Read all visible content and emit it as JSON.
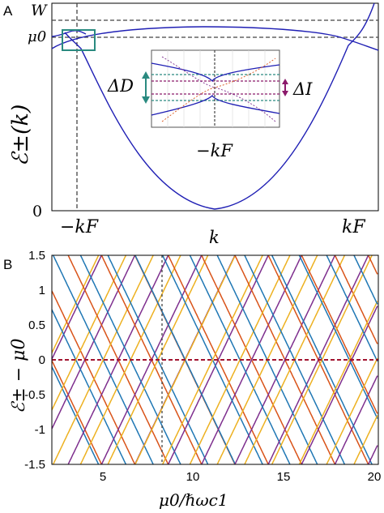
{
  "panelA": {
    "label": "A",
    "ylabel": "ℰ±(k)",
    "xlabel": "k",
    "ytick_W": "W",
    "ytick_mu0": "μ0",
    "ytick_zero": "0",
    "xtick_left": "−kF",
    "xtick_right": "kF",
    "inset": {
      "xlabel": "−kF",
      "delta_d": "ΔD",
      "delta_i": "ΔI"
    },
    "colors": {
      "band": "#1f1fb4",
      "box": "#2a8a80",
      "dash": "#444444",
      "purple": "#8b1a6b",
      "teal": "#2a8a80"
    }
  },
  "panelB": {
    "label": "B",
    "ylabel": "ℰ± − μ0",
    "xlabel": "μ0/ℏωc1",
    "yticks": [
      "1.5",
      "1",
      "0.5",
      "0",
      "-0.5",
      "-1",
      "-1.5"
    ],
    "xticks": [
      "5",
      "10",
      "15",
      "20"
    ],
    "colors": {
      "orange": "#d95319",
      "blue": "#1f77b4",
      "yellow": "#edb120",
      "purple": "#7e2f8e",
      "zero_line": "#a2142f"
    }
  }
}
